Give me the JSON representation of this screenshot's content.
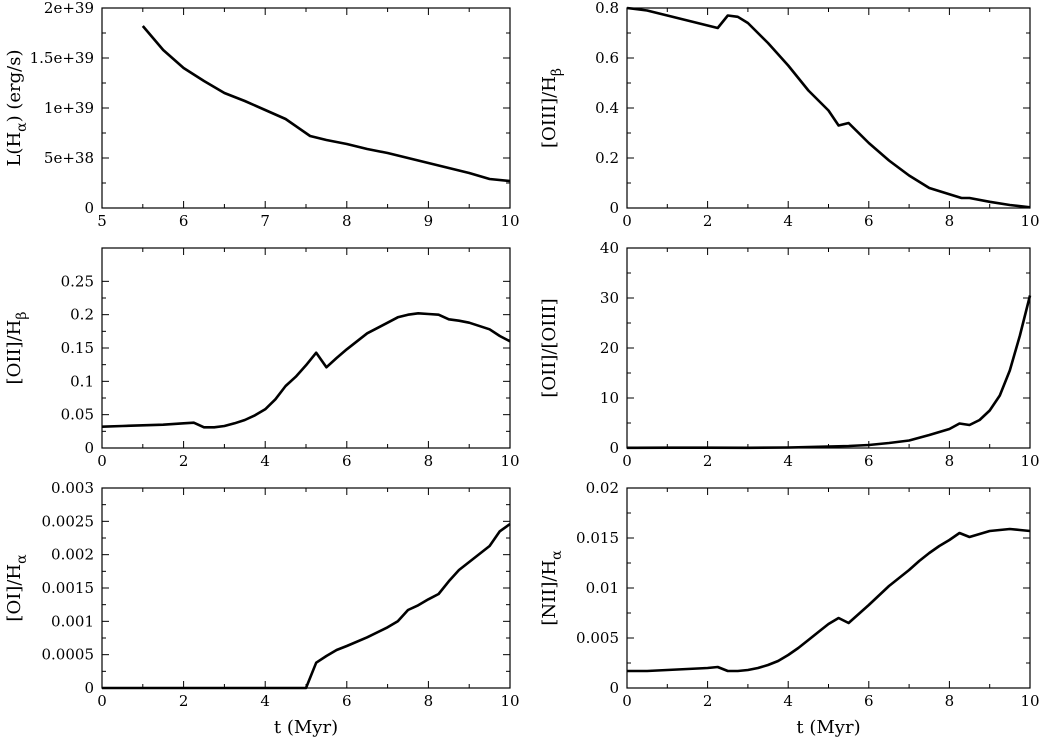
{
  "chart_data": [
    {
      "type": "line",
      "title": "",
      "xlabel": "",
      "ylabel_parts": [
        "L(H",
        "α",
        ") (erg/s)"
      ],
      "xlim": [
        5,
        10
      ],
      "ylim": [
        0,
        2e+39
      ],
      "xticks": [
        5,
        6,
        7,
        8,
        9,
        10
      ],
      "xtick_labels": [
        "5",
        "6",
        "7",
        "8",
        "9",
        "10"
      ],
      "yticks": [
        0,
        5e+38,
        1e+39,
        1.5e+39,
        2e+39
      ],
      "ytick_labels": [
        "0",
        "5e+38",
        "1e+39",
        "1.5e+39",
        "2e+39"
      ],
      "series": [
        {
          "x": [
            5.5,
            5.75,
            6.0,
            6.25,
            6.5,
            6.75,
            7.0,
            7.25,
            7.55,
            7.75,
            8.0,
            8.25,
            8.5,
            8.75,
            9.0,
            9.25,
            9.5,
            9.75,
            10.0
          ],
          "y": [
            1.82e+39,
            1.58e+39,
            1.4e+39,
            1.27e+39,
            1.15e+39,
            1.07e+39,
            9.8e+38,
            8.9e+38,
            7.2e+38,
            6.8e+38,
            6.4e+38,
            5.9e+38,
            5.5e+38,
            5e+38,
            4.5e+38,
            4e+38,
            3.5e+38,
            2.9e+38,
            2.7e+38
          ]
        }
      ]
    },
    {
      "type": "line",
      "title": "",
      "xlabel": "",
      "ylabel_parts": [
        "[OIII]/H",
        "β",
        ""
      ],
      "xlim": [
        0,
        10
      ],
      "ylim": [
        0,
        0.8
      ],
      "xticks": [
        0,
        2,
        4,
        6,
        8,
        10
      ],
      "xtick_labels": [
        "0",
        "2",
        "4",
        "6",
        "8",
        "10"
      ],
      "yticks": [
        0,
        0.2,
        0.4,
        0.6,
        0.8
      ],
      "ytick_labels": [
        "0",
        "0.2",
        "0.4",
        "0.6",
        "0.8"
      ],
      "series": [
        {
          "x": [
            0.0,
            0.5,
            1.0,
            1.5,
            2.0,
            2.25,
            2.5,
            2.75,
            3.0,
            3.5,
            4.0,
            4.5,
            5.0,
            5.25,
            5.5,
            6.0,
            6.5,
            7.0,
            7.5,
            8.0,
            8.3,
            8.5,
            9.0,
            9.5,
            10.0
          ],
          "y": [
            0.8,
            0.79,
            0.77,
            0.75,
            0.73,
            0.72,
            0.77,
            0.765,
            0.74,
            0.66,
            0.57,
            0.47,
            0.39,
            0.33,
            0.34,
            0.26,
            0.19,
            0.13,
            0.08,
            0.055,
            0.04,
            0.04,
            0.025,
            0.012,
            0.003
          ]
        }
      ]
    },
    {
      "type": "line",
      "title": "",
      "xlabel": "",
      "ylabel_parts": [
        "[OII]/H",
        "β",
        ""
      ],
      "xlim": [
        0,
        10
      ],
      "ylim": [
        0,
        0.3
      ],
      "xticks": [
        0,
        2,
        4,
        6,
        8,
        10
      ],
      "xtick_labels": [
        "0",
        "2",
        "4",
        "6",
        "8",
        "10"
      ],
      "yticks": [
        0,
        0.05,
        0.1,
        0.15,
        0.2,
        0.25
      ],
      "ytick_labels": [
        "0",
        "0.05",
        "0.1",
        "0.15",
        "0.2",
        "0.25"
      ],
      "series": [
        {
          "x": [
            0.0,
            0.5,
            1.0,
            1.5,
            2.0,
            2.25,
            2.5,
            2.75,
            3.0,
            3.25,
            3.5,
            3.75,
            4.0,
            4.25,
            4.5,
            4.75,
            5.0,
            5.25,
            5.5,
            5.75,
            6.0,
            6.5,
            7.0,
            7.25,
            7.5,
            7.75,
            8.0,
            8.25,
            8.5,
            8.75,
            9.0,
            9.5,
            9.75,
            10.0
          ],
          "y": [
            0.032,
            0.033,
            0.034,
            0.035,
            0.037,
            0.038,
            0.031,
            0.031,
            0.033,
            0.037,
            0.042,
            0.049,
            0.058,
            0.073,
            0.093,
            0.107,
            0.124,
            0.143,
            0.121,
            0.135,
            0.148,
            0.172,
            0.188,
            0.196,
            0.2,
            0.202,
            0.201,
            0.2,
            0.193,
            0.191,
            0.188,
            0.178,
            0.168,
            0.16
          ]
        }
      ]
    },
    {
      "type": "line",
      "title": "",
      "xlabel": "",
      "ylabel_parts": [
        "[OII]/[OIII]",
        "",
        ""
      ],
      "xlim": [
        0,
        10
      ],
      "ylim": [
        0,
        40
      ],
      "xticks": [
        0,
        2,
        4,
        6,
        8,
        10
      ],
      "xtick_labels": [
        "0",
        "2",
        "4",
        "6",
        "8",
        "10"
      ],
      "yticks": [
        0,
        10,
        20,
        30,
        40
      ],
      "ytick_labels": [
        "0",
        "10",
        "20",
        "30",
        "40"
      ],
      "series": [
        {
          "x": [
            0.0,
            1.0,
            2.0,
            3.0,
            4.0,
            4.5,
            5.0,
            5.5,
            6.0,
            6.5,
            7.0,
            7.5,
            8.0,
            8.25,
            8.5,
            8.75,
            9.0,
            9.25,
            9.5,
            9.75,
            10.0
          ],
          "y": [
            0.05,
            0.06,
            0.06,
            0.05,
            0.1,
            0.2,
            0.3,
            0.4,
            0.6,
            1.0,
            1.5,
            2.6,
            3.8,
            4.9,
            4.6,
            5.6,
            7.5,
            10.5,
            15.5,
            22.5,
            30.5
          ]
        }
      ]
    },
    {
      "type": "line",
      "title": "",
      "xlabel": "t (Myr)",
      "ylabel_parts": [
        "[OI]/H",
        "α",
        ""
      ],
      "xlim": [
        0,
        10
      ],
      "ylim": [
        0,
        0.003
      ],
      "xticks": [
        0,
        2,
        4,
        6,
        8,
        10
      ],
      "xtick_labels": [
        "0",
        "2",
        "4",
        "6",
        "8",
        "10"
      ],
      "yticks": [
        0,
        0.0005,
        0.001,
        0.0015,
        0.002,
        0.0025,
        0.003
      ],
      "ytick_labels": [
        "0",
        "0.0005",
        "0.001",
        "0.0015",
        "0.002",
        "0.0025",
        "0.003"
      ],
      "series": [
        {
          "x": [
            0.0,
            1.0,
            2.0,
            3.0,
            4.0,
            4.6,
            5.0,
            5.25,
            5.5,
            5.75,
            6.0,
            6.5,
            7.0,
            7.25,
            7.5,
            7.75,
            8.0,
            8.25,
            8.5,
            8.75,
            9.0,
            9.25,
            9.5,
            9.75,
            10.0
          ],
          "y": [
            0,
            0,
            0,
            0,
            0,
            0,
            0,
            0.00038,
            0.00048,
            0.00057,
            0.00063,
            0.00076,
            0.00091,
            0.001,
            0.00117,
            0.00124,
            0.00133,
            0.00141,
            0.0016,
            0.00177,
            0.00189,
            0.00201,
            0.00213,
            0.00235,
            0.00246
          ]
        }
      ]
    },
    {
      "type": "line",
      "title": "",
      "xlabel": "t (Myr)",
      "ylabel_parts": [
        "[NII]/H",
        "α",
        ""
      ],
      "xlim": [
        0,
        10
      ],
      "ylim": [
        0,
        0.02
      ],
      "xticks": [
        0,
        2,
        4,
        6,
        8,
        10
      ],
      "xtick_labels": [
        "0",
        "2",
        "4",
        "6",
        "8",
        "10"
      ],
      "yticks": [
        0,
        0.005,
        0.01,
        0.015,
        0.02
      ],
      "ytick_labels": [
        "0",
        "0.005",
        "0.01",
        "0.015",
        "0.02"
      ],
      "series": [
        {
          "x": [
            0.0,
            0.5,
            1.0,
            1.5,
            2.0,
            2.25,
            2.5,
            2.75,
            3.0,
            3.25,
            3.5,
            3.75,
            4.0,
            4.25,
            4.5,
            4.75,
            5.0,
            5.25,
            5.5,
            5.75,
            6.0,
            6.5,
            7.0,
            7.25,
            7.5,
            7.75,
            8.0,
            8.25,
            8.5,
            8.75,
            9.0,
            9.5,
            9.75,
            10.0
          ],
          "y": [
            0.0017,
            0.0017,
            0.0018,
            0.0019,
            0.002,
            0.0021,
            0.0017,
            0.0017,
            0.0018,
            0.002,
            0.0023,
            0.0027,
            0.0033,
            0.004,
            0.0048,
            0.0056,
            0.0064,
            0.007,
            0.0065,
            0.0074,
            0.0083,
            0.0102,
            0.0118,
            0.0127,
            0.0135,
            0.0142,
            0.0148,
            0.0155,
            0.0151,
            0.0154,
            0.0157,
            0.0159,
            0.0158,
            0.0157
          ]
        }
      ]
    }
  ]
}
